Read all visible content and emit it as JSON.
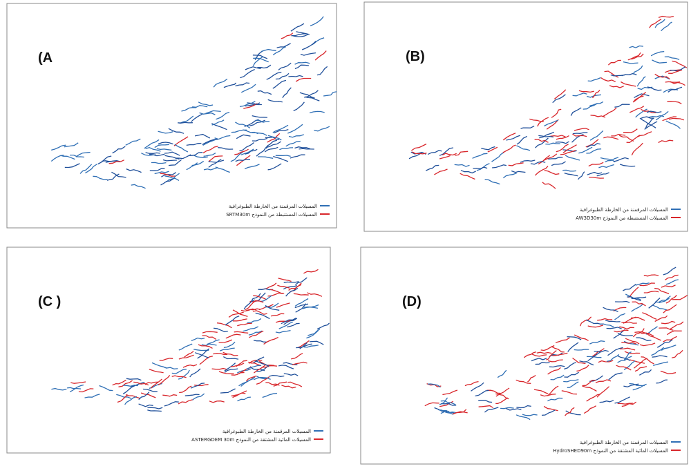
{
  "panels": [
    {
      "label": "(A",
      "legend": [
        "المسيلات المرقمنة من الخارطة الطبوغرافية",
        "المسيلات المستنبطة من النموذج SRTM30m"
      ]
    },
    {
      "label": "(B)",
      "legend": [
        "المسيلات المرقمنة من الخارطة الطبوغرافية",
        "المسيلات المستنبطة من النموذج AW3D30m"
      ]
    },
    {
      "label": "(C )",
      "legend": [
        "المسيلات المرقمنة من الخارطة الطبوغرافية",
        "المسيلات المائية المشتقة من النموذج ASTERGDEM 30m"
      ]
    },
    {
      "label": "(D)",
      "legend": [
        "المسيلات المرقمنة من الخارطة الطبوغرافية",
        "المسيلات المائية المشتقة من النموذج HydroSHED90m"
      ]
    }
  ]
}
